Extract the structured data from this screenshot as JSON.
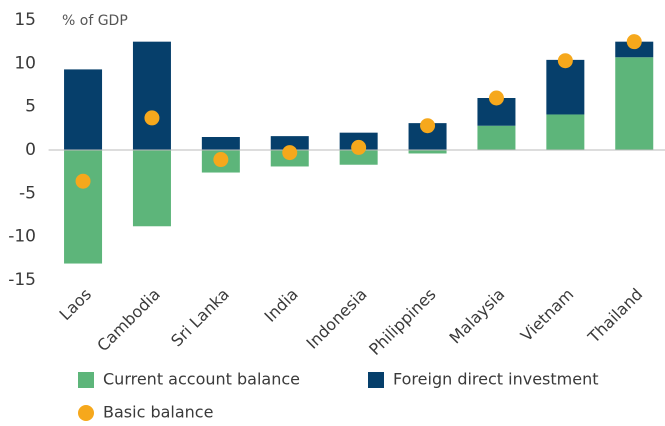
{
  "chart_data": {
    "type": "bar",
    "stacked": true,
    "annotations": [
      "% of GDP"
    ],
    "categories": [
      "Laos",
      "Cambodia",
      "Sri Lanka",
      "India",
      "Indonesia",
      "Philippines",
      "Malaysia",
      "Vietnam",
      "Thailand"
    ],
    "series": [
      {
        "name": "Current account balance",
        "color": "#5db57a",
        "type": "bar",
        "values": [
          -13.1,
          -8.8,
          -2.6,
          -1.9,
          -1.7,
          -0.4,
          2.8,
          4.1,
          10.7
        ]
      },
      {
        "name": "Foreign direct investment",
        "color": "#063f6b",
        "type": "bar",
        "values": [
          9.3,
          12.5,
          1.5,
          1.6,
          2.0,
          3.1,
          3.2,
          6.3,
          1.8
        ]
      },
      {
        "name": "Basic balance",
        "color": "#f6a81c",
        "type": "dot",
        "values": [
          -3.6,
          3.7,
          -1.1,
          -0.3,
          0.3,
          2.8,
          6.0,
          10.3,
          12.5
        ]
      }
    ],
    "ylim": [
      -15,
      15
    ],
    "yticks": [
      15,
      10,
      5,
      0,
      -5,
      -10,
      -15
    ],
    "grid": false
  }
}
